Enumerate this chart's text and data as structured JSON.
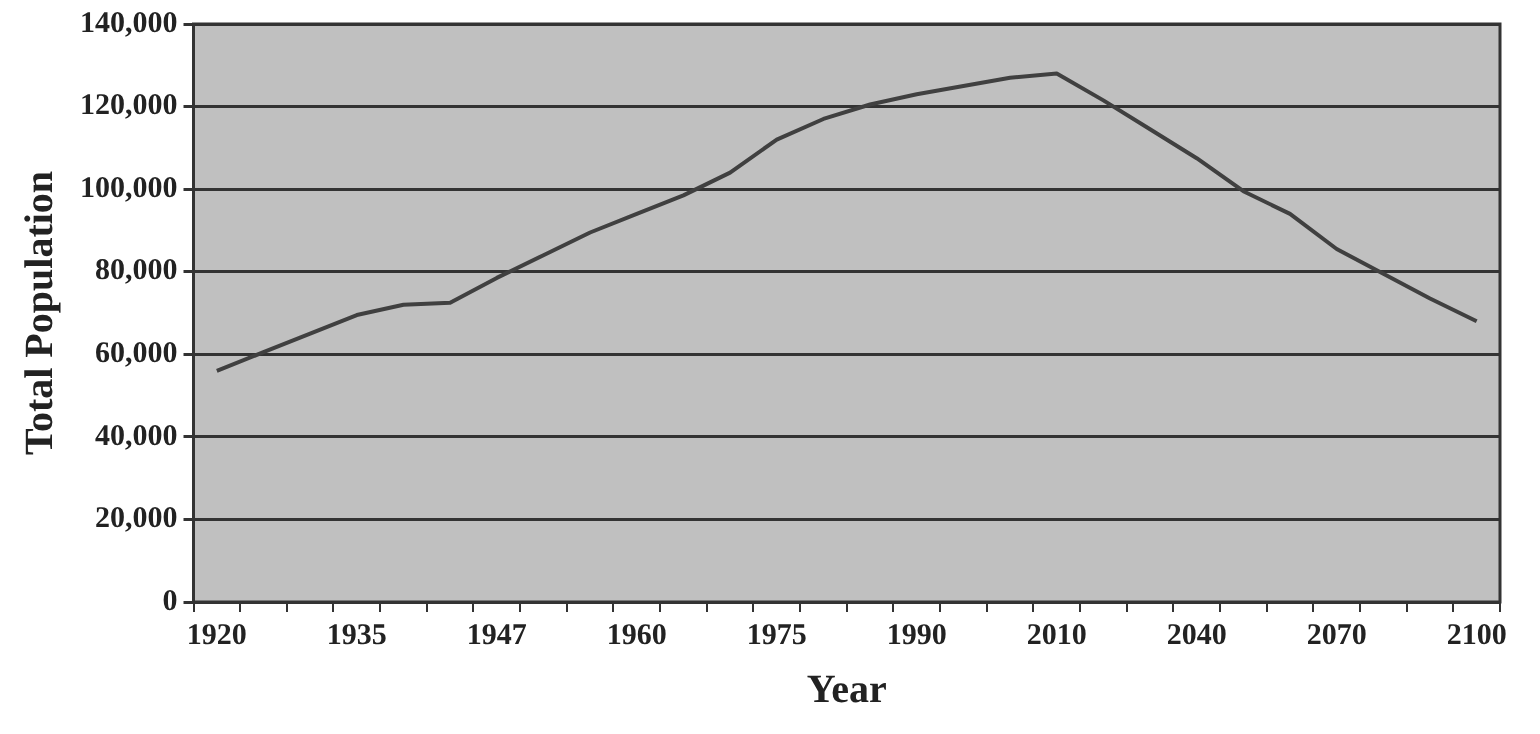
{
  "chart_data": {
    "type": "line",
    "xlabel": "Year",
    "ylabel": "Total Population",
    "categories": [
      "1920",
      null,
      null,
      "1935",
      null,
      null,
      "1947",
      null,
      null,
      "1960",
      null,
      null,
      "1975",
      null,
      null,
      "1990",
      null,
      null,
      "2010",
      null,
      null,
      "2040",
      null,
      null,
      "2070",
      null,
      null,
      "2100"
    ],
    "series": [
      {
        "color": "#404040",
        "values": [
          56000,
          60500,
          65000,
          69500,
          72000,
          72500,
          78500,
          84000,
          89500,
          94000,
          98500,
          104000,
          112000,
          117000,
          120500,
          123000,
          125000,
          127000,
          128000,
          121500,
          114500,
          107500,
          99500,
          94000,
          85500,
          79500,
          73500,
          68000
        ]
      }
    ],
    "ylim": [
      0,
      140000
    ],
    "yticks": [
      {
        "value": 0,
        "label": "0"
      },
      {
        "value": 20000,
        "label": "20,000"
      },
      {
        "value": 40000,
        "label": "40,000"
      },
      {
        "value": 60000,
        "label": "60,000"
      },
      {
        "value": 80000,
        "label": "80,000"
      },
      {
        "value": 100000,
        "label": "100,000"
      },
      {
        "value": 120000,
        "label": "120,000"
      },
      {
        "value": 140000,
        "label": "140,000"
      }
    ],
    "grid": "y",
    "legend": false,
    "marker": "none",
    "line_style": "solid"
  }
}
